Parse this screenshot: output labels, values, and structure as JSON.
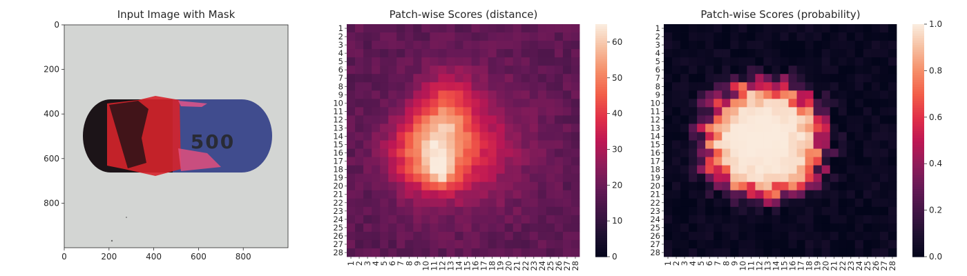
{
  "figure": {
    "panels": [
      {
        "title": "Input Image with Mask"
      },
      {
        "title": "Patch-wise Scores (distance)"
      },
      {
        "title": "Patch-wise Scores (probability)"
      }
    ]
  },
  "image_panel": {
    "x_ticks": [
      "0",
      "200",
      "400",
      "600",
      "800"
    ],
    "y_ticks": [
      "0",
      "200",
      "400",
      "600",
      "800"
    ],
    "x_tick_values": [
      0,
      200,
      400,
      600,
      800
    ],
    "y_tick_values": [
      0,
      200,
      400,
      600,
      800
    ],
    "extent": [
      0,
      1000
    ],
    "capsule_print": "500",
    "colors": {
      "background": "#d2d4d2",
      "capsule_left": "#1b1316",
      "capsule_right": "#3f4a8c",
      "mask_red": "#e3262b",
      "mask_pink": "#e04e7d"
    }
  },
  "chart_data": [
    {
      "type": "heatmap",
      "title": "Patch-wise Scores (distance)",
      "xlabel": "",
      "ylabel": "",
      "x_categories": [
        "1",
        "2",
        "3",
        "4",
        "5",
        "6",
        "7",
        "8",
        "9",
        "10",
        "11",
        "12",
        "13",
        "14",
        "15",
        "16",
        "17",
        "18",
        "19",
        "20",
        "21",
        "22",
        "23",
        "24",
        "25",
        "26",
        "27",
        "28"
      ],
      "y_categories": [
        "1",
        "2",
        "3",
        "4",
        "5",
        "6",
        "7",
        "8",
        "9",
        "10",
        "11",
        "12",
        "13",
        "14",
        "15",
        "16",
        "17",
        "18",
        "19",
        "20",
        "21",
        "22",
        "23",
        "24",
        "25",
        "26",
        "27",
        "28"
      ],
      "colorbar": {
        "ticks": [
          0,
          10,
          20,
          30,
          40,
          50,
          60
        ],
        "range": [
          0,
          65
        ],
        "colormap": "rocket"
      },
      "value_model": {
        "base": 18,
        "blobs": [
          {
            "cx": 10.5,
            "cy": 16,
            "sx": 3.3,
            "sy": 3.3,
            "a": 34
          },
          {
            "cx": 11.8,
            "cy": 18.5,
            "sx": 1.2,
            "sy": 1.2,
            "a": 18
          },
          {
            "cx": 12.5,
            "cy": 10.5,
            "sx": 2.2,
            "sy": 3.0,
            "a": 18
          },
          {
            "cx": 16,
            "cy": 15,
            "sx": 4.5,
            "sy": 5,
            "a": 14
          }
        ]
      }
    },
    {
      "type": "heatmap",
      "title": "Patch-wise Scores (probability)",
      "xlabel": "",
      "ylabel": "",
      "x_categories": [
        "1",
        "2",
        "3",
        "4",
        "5",
        "6",
        "7",
        "8",
        "9",
        "10",
        "11",
        "12",
        "13",
        "14",
        "15",
        "16",
        "17",
        "18",
        "19",
        "20",
        "21",
        "22",
        "23",
        "24",
        "25",
        "26",
        "27",
        "28"
      ],
      "y_categories": [
        "1",
        "2",
        "3",
        "4",
        "5",
        "6",
        "7",
        "8",
        "9",
        "10",
        "11",
        "12",
        "13",
        "14",
        "15",
        "16",
        "17",
        "18",
        "19",
        "20",
        "21",
        "22",
        "23",
        "24",
        "25",
        "26",
        "27",
        "28"
      ],
      "colorbar": {
        "ticks": [
          "0.0",
          "0.2",
          "0.4",
          "0.6",
          "0.8",
          "1.0"
        ],
        "range": [
          0,
          1
        ],
        "colormap": "rocket"
      },
      "value_model": {
        "center": [
          12.5,
          14.5
        ],
        "radius_x": 7.2,
        "radius_y": 6.8
      }
    }
  ]
}
